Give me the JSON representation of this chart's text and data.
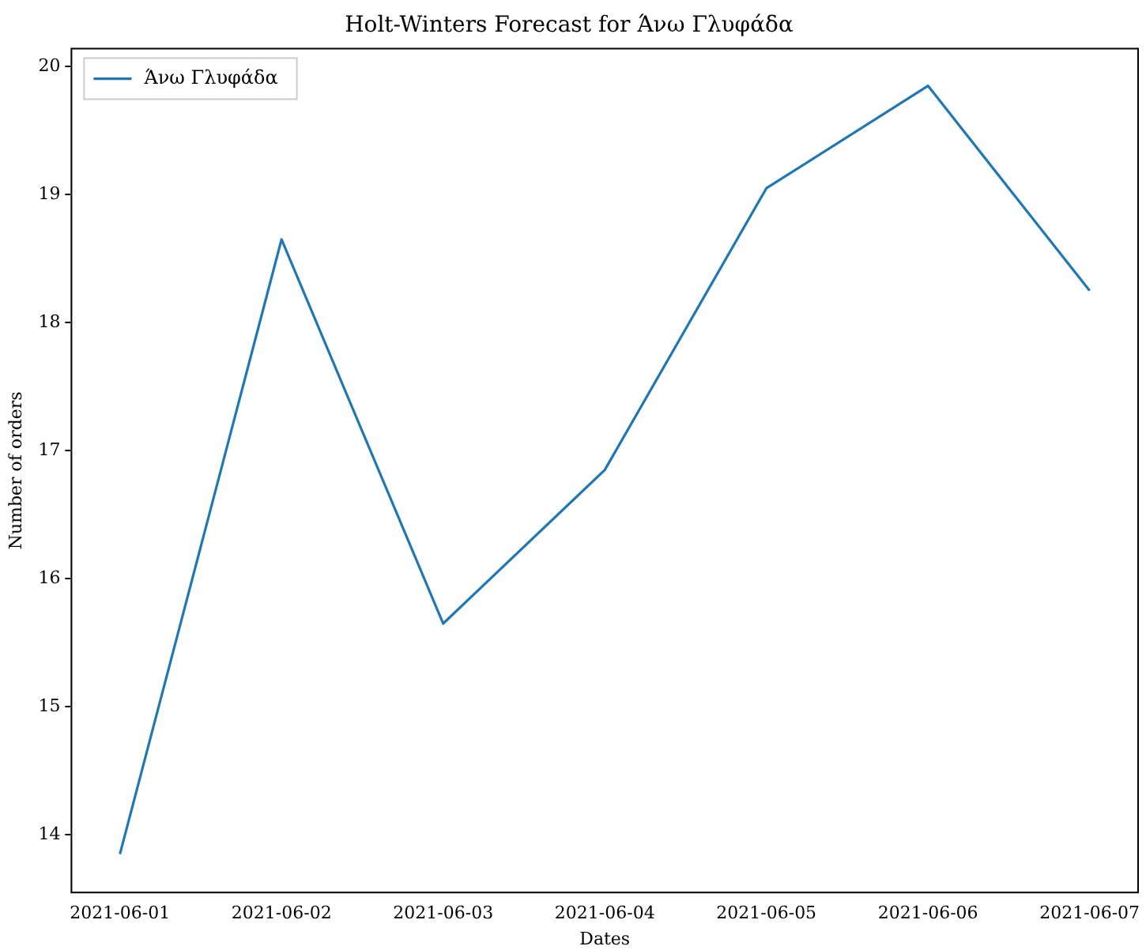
{
  "chart_data": {
    "type": "line",
    "title": "Holt-Winters Forecast for Άνω Γλυφάδα",
    "xlabel": "Dates",
    "ylabel": "Number of orders",
    "categories": [
      "2021-06-01",
      "2021-06-02",
      "2021-06-03",
      "2021-06-04",
      "2021-06-05",
      "2021-06-06",
      "2021-06-07"
    ],
    "series": [
      {
        "name": "Άνω Γλυφάδα",
        "color": "#1f77b4",
        "values": [
          13.85,
          18.65,
          15.65,
          16.85,
          19.05,
          19.85,
          18.25
        ]
      }
    ],
    "ylim": [
      13.55,
      20.14
    ],
    "yticks": [
      14,
      15,
      16,
      17,
      18,
      19,
      20
    ],
    "grid": false,
    "legend": "top left",
    "marker": "none",
    "line_style": "solid"
  }
}
